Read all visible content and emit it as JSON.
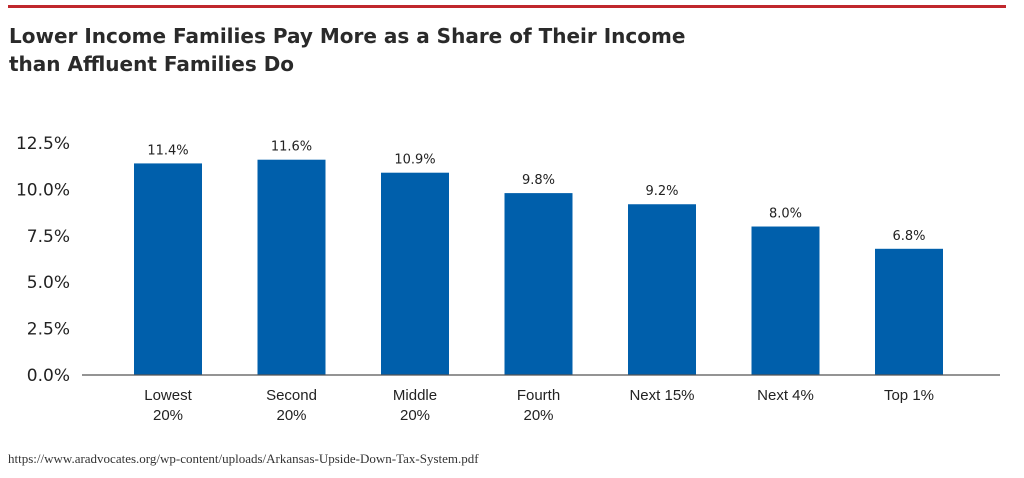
{
  "title_line1": "Lower Income Families Pay More as a Share of Their Income",
  "title_line2": "than Affluent Families Do",
  "source": "https://www.aradvocates.org/wp-content/uploads/Arkansas-Upside-Down-Tax-System.pdf",
  "colors": {
    "bar": "#005fab",
    "accent": "#c0282d",
    "axis": "#555555"
  },
  "chart_data": {
    "type": "bar",
    "title": "Lower Income Families Pay More as a Share of Their Income than Affluent Families Do",
    "xlabel": "",
    "ylabel": "",
    "categories": [
      [
        "Lowest",
        "20%"
      ],
      [
        "Second",
        "20%"
      ],
      [
        "Middle",
        "20%"
      ],
      [
        "Fourth",
        "20%"
      ],
      [
        "Next 15%"
      ],
      [
        "Next 4%"
      ],
      [
        "Top 1%"
      ]
    ],
    "values": [
      11.4,
      11.6,
      10.9,
      9.8,
      9.2,
      8.0,
      6.8
    ],
    "data_labels": [
      "11.4%",
      "11.6%",
      "10.9%",
      "9.8%",
      "9.2%",
      "8.0%",
      "6.8%"
    ],
    "ylim": [
      0,
      12.5
    ],
    "yticks": [
      0,
      2.5,
      5.0,
      7.5,
      10.0,
      12.5
    ],
    "ytick_labels": [
      "0.0%",
      "2.5%",
      "5.0%",
      "7.5%",
      "10.0%",
      "12.5%"
    ],
    "grid": false,
    "legend": "none"
  }
}
